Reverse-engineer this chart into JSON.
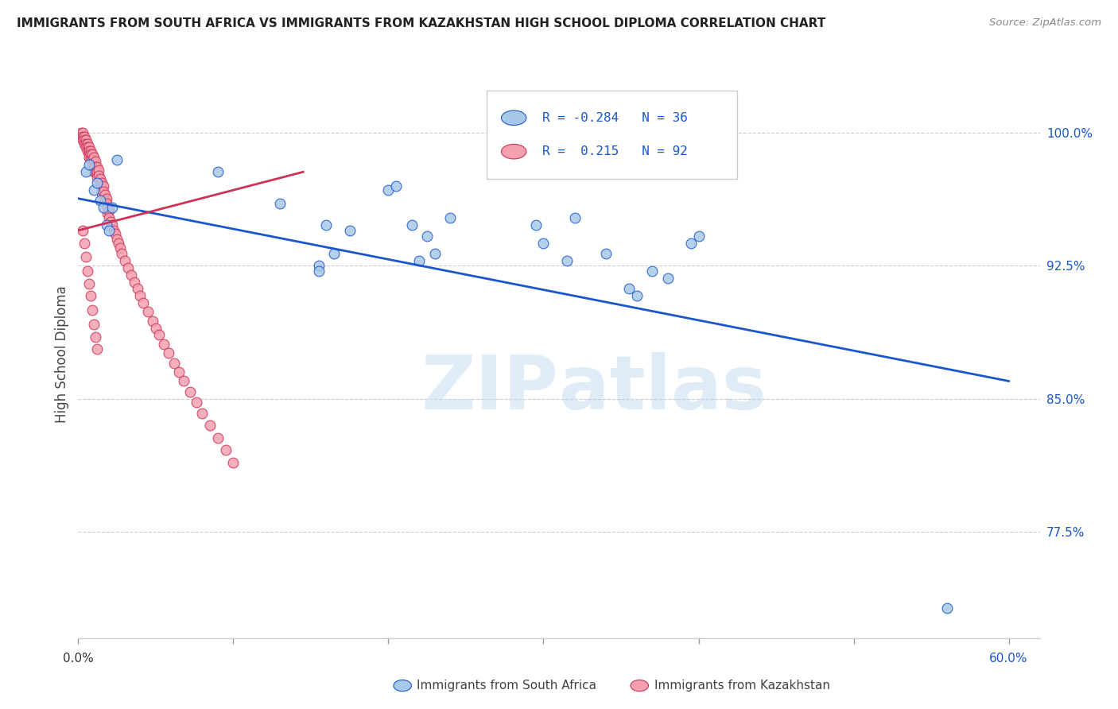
{
  "title": "IMMIGRANTS FROM SOUTH AFRICA VS IMMIGRANTS FROM KAZAKHSTAN HIGH SCHOOL DIPLOMA CORRELATION CHART",
  "source": "Source: ZipAtlas.com",
  "ylabel": "High School Diploma",
  "ytick_labels": [
    "100.0%",
    "92.5%",
    "85.0%",
    "77.5%"
  ],
  "ytick_values": [
    1.0,
    0.925,
    0.85,
    0.775
  ],
  "xlim": [
    0.0,
    0.62
  ],
  "ylim": [
    0.715,
    1.035
  ],
  "blue_color": "#a8c8e8",
  "pink_color": "#f4a0b0",
  "blue_line_color": "#1a56cc",
  "pink_line_color": "#cc3355",
  "watermark_zip": "ZIP",
  "watermark_atlas": "atlas",
  "background_color": "#ffffff",
  "grid_color": "#cccccc",
  "scatter_size": 85,
  "blue_scatter_x": [
    0.005,
    0.007,
    0.01,
    0.012,
    0.014,
    0.016,
    0.018,
    0.02,
    0.022,
    0.025,
    0.09,
    0.13,
    0.155,
    0.16,
    0.165,
    0.2,
    0.205,
    0.215,
    0.225,
    0.23,
    0.24,
    0.295,
    0.3,
    0.315,
    0.32,
    0.34,
    0.355,
    0.36,
    0.37,
    0.38,
    0.395,
    0.4,
    0.155,
    0.22,
    0.175,
    0.56
  ],
  "blue_scatter_y": [
    0.978,
    0.982,
    0.968,
    0.972,
    0.962,
    0.958,
    0.948,
    0.945,
    0.958,
    0.985,
    0.978,
    0.96,
    0.925,
    0.948,
    0.932,
    0.968,
    0.97,
    0.948,
    0.942,
    0.932,
    0.952,
    0.948,
    0.938,
    0.928,
    0.952,
    0.932,
    0.912,
    0.908,
    0.922,
    0.918,
    0.938,
    0.942,
    0.922,
    0.928,
    0.945,
    0.732
  ],
  "pink_scatter_x": [
    0.002,
    0.002,
    0.003,
    0.003,
    0.003,
    0.004,
    0.004,
    0.004,
    0.005,
    0.005,
    0.005,
    0.006,
    0.006,
    0.006,
    0.007,
    0.007,
    0.007,
    0.007,
    0.008,
    0.008,
    0.008,
    0.009,
    0.009,
    0.009,
    0.01,
    0.01,
    0.01,
    0.01,
    0.011,
    0.011,
    0.011,
    0.012,
    0.012,
    0.012,
    0.013,
    0.013,
    0.014,
    0.014,
    0.015,
    0.015,
    0.015,
    0.016,
    0.016,
    0.017,
    0.017,
    0.018,
    0.018,
    0.019,
    0.019,
    0.02,
    0.02,
    0.021,
    0.022,
    0.023,
    0.024,
    0.025,
    0.026,
    0.027,
    0.028,
    0.03,
    0.032,
    0.034,
    0.036,
    0.038,
    0.04,
    0.042,
    0.045,
    0.048,
    0.05,
    0.052,
    0.055,
    0.058,
    0.062,
    0.065,
    0.068,
    0.072,
    0.076,
    0.08,
    0.085,
    0.09,
    0.095,
    0.1,
    0.003,
    0.004,
    0.005,
    0.006,
    0.007,
    0.008,
    0.009,
    0.01,
    0.011,
    0.012
  ],
  "pink_scatter_y": [
    1.0,
    0.998,
    1.0,
    0.998,
    0.996,
    0.998,
    0.996,
    0.994,
    0.996,
    0.994,
    0.992,
    0.994,
    0.992,
    0.99,
    0.992,
    0.99,
    0.988,
    0.986,
    0.99,
    0.988,
    0.985,
    0.988,
    0.985,
    0.982,
    0.986,
    0.983,
    0.98,
    0.978,
    0.984,
    0.981,
    0.978,
    0.981,
    0.978,
    0.975,
    0.979,
    0.976,
    0.974,
    0.971,
    0.972,
    0.969,
    0.966,
    0.97,
    0.967,
    0.965,
    0.962,
    0.963,
    0.96,
    0.958,
    0.955,
    0.956,
    0.952,
    0.95,
    0.948,
    0.945,
    0.943,
    0.94,
    0.938,
    0.935,
    0.932,
    0.928,
    0.924,
    0.92,
    0.916,
    0.912,
    0.908,
    0.904,
    0.899,
    0.894,
    0.89,
    0.886,
    0.881,
    0.876,
    0.87,
    0.865,
    0.86,
    0.854,
    0.848,
    0.842,
    0.835,
    0.828,
    0.821,
    0.814,
    0.945,
    0.938,
    0.93,
    0.922,
    0.915,
    0.908,
    0.9,
    0.892,
    0.885,
    0.878
  ],
  "blue_line_x": [
    0.0,
    0.6
  ],
  "blue_line_y": [
    0.963,
    0.86
  ],
  "pink_line_x": [
    0.0,
    0.145
  ],
  "pink_line_y": [
    0.945,
    0.978
  ]
}
